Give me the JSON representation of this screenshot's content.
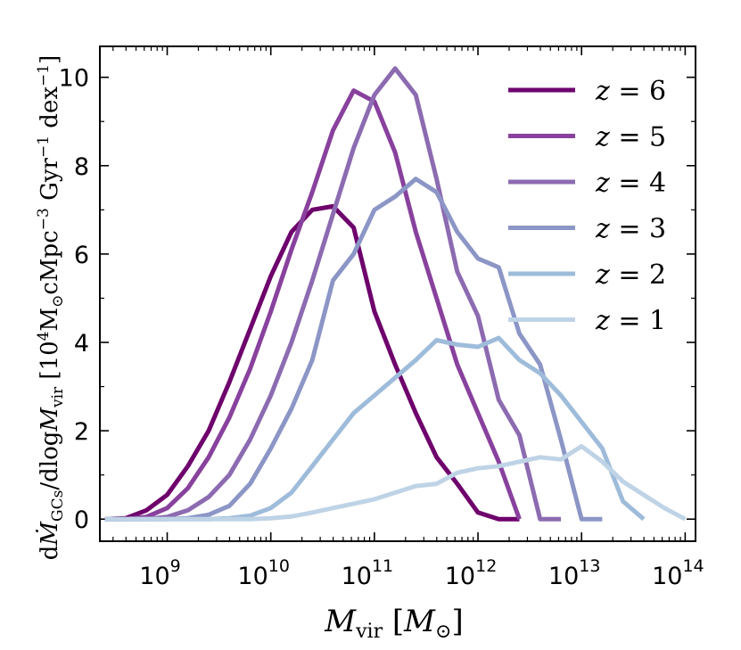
{
  "chart_data": {
    "type": "line",
    "title": "",
    "xlabel": "M_vir [M_sun]",
    "ylabel": "dM_GCs/dlogM_vir [10^4 M_sun cMpc^-3 Gyr^-1 dex^-1]",
    "xscale": "log",
    "xlim_log10": [
      8.35,
      14.1
    ],
    "ylim": [
      -0.5,
      10.7
    ],
    "legend_position": "top-right",
    "x_ticks": [
      {
        "base": "10",
        "exp": "9",
        "log10": 9
      },
      {
        "base": "10",
        "exp": "10",
        "log10": 10
      },
      {
        "base": "10",
        "exp": "11",
        "log10": 11
      },
      {
        "base": "10",
        "exp": "12",
        "log10": 12
      },
      {
        "base": "10",
        "exp": "13",
        "log10": 13
      },
      {
        "base": "10",
        "exp": "14",
        "log10": 14
      }
    ],
    "y_ticks": [
      "0",
      "2",
      "4",
      "6",
      "8",
      "10"
    ],
    "series": [
      {
        "name": "z = 6",
        "z": "6",
        "color": "#6e006c",
        "log10_x": [
          8.4,
          8.6,
          8.8,
          9.0,
          9.2,
          9.4,
          9.6,
          9.8,
          10.0,
          10.2,
          10.4,
          10.6,
          10.8,
          11.0,
          11.2,
          11.4,
          11.6,
          11.8,
          12.0,
          12.2,
          12.4
        ],
        "y": [
          0,
          0.02,
          0.2,
          0.55,
          1.2,
          2.0,
          3.1,
          4.3,
          5.5,
          6.5,
          7.0,
          7.08,
          6.6,
          4.7,
          3.5,
          2.4,
          1.4,
          0.8,
          0.15,
          0,
          0
        ]
      },
      {
        "name": "z = 5",
        "z": "5",
        "color": "#88419d",
        "log10_x": [
          8.4,
          8.6,
          8.8,
          9.0,
          9.2,
          9.4,
          9.6,
          9.8,
          10.0,
          10.2,
          10.4,
          10.6,
          10.8,
          11.0,
          11.2,
          11.4,
          11.6,
          11.8,
          12.0,
          12.2,
          12.4
        ],
        "y": [
          0,
          0,
          0.05,
          0.25,
          0.7,
          1.4,
          2.3,
          3.4,
          4.7,
          6.1,
          7.4,
          8.8,
          9.7,
          9.45,
          8.3,
          6.5,
          5.0,
          3.5,
          2.4,
          1.3,
          0
        ]
      },
      {
        "name": "z = 4",
        "z": "4",
        "color": "#8c6bb1",
        "log10_x": [
          8.4,
          8.6,
          8.8,
          9.0,
          9.2,
          9.4,
          9.6,
          9.8,
          10.0,
          10.2,
          10.4,
          10.6,
          10.8,
          11.0,
          11.2,
          11.4,
          11.6,
          11.8,
          12.0,
          12.2,
          12.4,
          12.6,
          12.8
        ],
        "y": [
          0,
          0,
          0,
          0.05,
          0.2,
          0.5,
          1.0,
          1.8,
          2.8,
          4.0,
          5.4,
          6.9,
          8.4,
          9.6,
          10.2,
          9.6,
          7.7,
          5.6,
          4.6,
          2.7,
          1.9,
          0,
          0
        ]
      },
      {
        "name": "z = 3",
        "z": "3",
        "color": "#8c96c6",
        "log10_x": [
          8.4,
          8.6,
          8.8,
          9.0,
          9.2,
          9.4,
          9.6,
          9.8,
          10.0,
          10.2,
          10.4,
          10.6,
          10.8,
          11.0,
          11.2,
          11.4,
          11.6,
          11.8,
          12.0,
          12.2,
          12.4,
          12.6,
          12.8,
          13.0,
          13.2
        ],
        "y": [
          0,
          0,
          0,
          0,
          0.02,
          0.1,
          0.3,
          0.8,
          1.6,
          2.5,
          3.6,
          5.4,
          6.0,
          7.0,
          7.3,
          7.7,
          7.4,
          6.5,
          5.9,
          5.7,
          4.2,
          3.5,
          1.8,
          0,
          0
        ]
      },
      {
        "name": "z = 2",
        "z": "2",
        "color": "#9ebcda",
        "log10_x": [
          8.4,
          8.6,
          8.8,
          9.0,
          9.2,
          9.4,
          9.6,
          9.8,
          10.0,
          10.2,
          10.4,
          10.6,
          10.8,
          11.0,
          11.2,
          11.4,
          11.6,
          11.8,
          12.0,
          12.2,
          12.4,
          12.6,
          12.8,
          13.0,
          13.2,
          13.4,
          13.6
        ],
        "y": [
          0,
          0,
          0,
          0,
          0,
          0,
          0.02,
          0.08,
          0.25,
          0.6,
          1.2,
          1.8,
          2.4,
          2.8,
          3.2,
          3.6,
          4.05,
          3.95,
          3.9,
          4.1,
          3.6,
          3.3,
          2.8,
          2.2,
          1.6,
          0.4,
          0
        ]
      },
      {
        "name": "z = 1",
        "z": "1",
        "color": "#bfd3e6",
        "log10_x": [
          8.4,
          8.6,
          8.8,
          9.0,
          9.2,
          9.4,
          9.6,
          9.8,
          10.0,
          10.2,
          10.4,
          10.6,
          10.8,
          11.0,
          11.2,
          11.4,
          11.6,
          11.8,
          12.0,
          12.2,
          12.4,
          12.6,
          12.8,
          13.0,
          13.2,
          13.4,
          13.6,
          13.8,
          14.0
        ],
        "y": [
          0,
          0,
          0,
          0,
          0,
          0,
          0,
          0,
          0.02,
          0.06,
          0.15,
          0.25,
          0.35,
          0.45,
          0.6,
          0.75,
          0.8,
          1.05,
          1.15,
          1.2,
          1.3,
          1.4,
          1.35,
          1.65,
          1.3,
          0.85,
          0.55,
          0.25,
          0
        ]
      }
    ]
  }
}
